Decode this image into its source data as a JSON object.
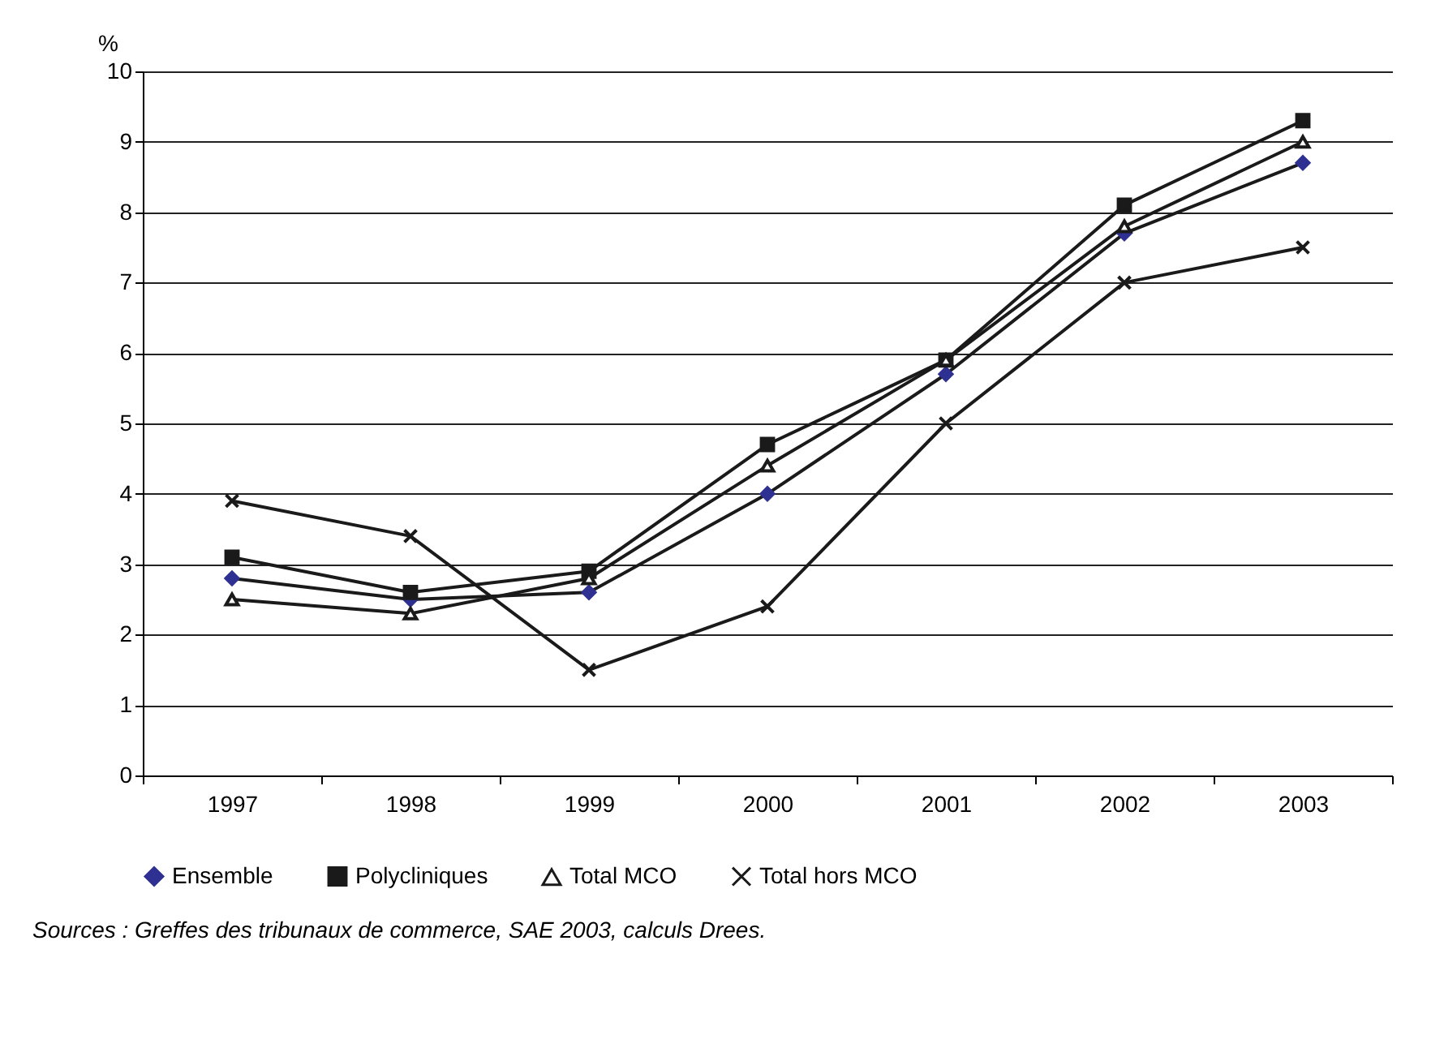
{
  "chart_data": {
    "type": "line",
    "ylabel": "%",
    "categories": [
      "1997",
      "1998",
      "1999",
      "2000",
      "2001",
      "2002",
      "2003"
    ],
    "series": [
      {
        "name": "Ensemble",
        "color": "#2e3192",
        "marker": "diamond",
        "values": [
          2.8,
          2.5,
          2.6,
          4.0,
          5.7,
          7.7,
          8.7
        ]
      },
      {
        "name": "Polycliniques",
        "color": "#1a1a1a",
        "marker": "square",
        "values": [
          3.1,
          2.6,
          2.9,
          4.7,
          5.9,
          8.1,
          9.3
        ]
      },
      {
        "name": "Total MCO",
        "color": "#ffffff",
        "marker": "triangle",
        "values": [
          2.5,
          2.3,
          2.8,
          4.4,
          5.9,
          7.8,
          9.0
        ]
      },
      {
        "name": "Total hors MCO",
        "color": "#1a1a1a",
        "marker": "cross",
        "values": [
          3.9,
          3.4,
          1.5,
          2.4,
          5.0,
          7.0,
          7.5
        ]
      }
    ],
    "ylim": [
      0,
      10
    ],
    "yticks": [
      0,
      1,
      2,
      3,
      4,
      5,
      6,
      7,
      8,
      9,
      10
    ],
    "grid": "y",
    "legend": "bottom",
    "line_style": "solid",
    "annotations": [
      "Sources : Greffes des tribunaux de commerce, SAE 2003, calculs Drees."
    ]
  }
}
